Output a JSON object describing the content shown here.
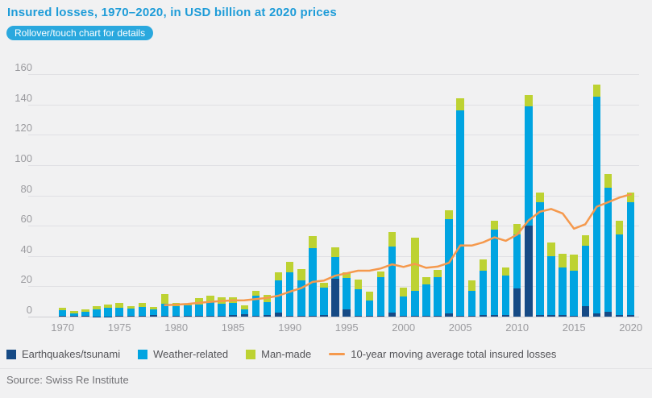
{
  "header": {
    "title": "Insured losses, 1970–2020, in USD billion at 2020 prices",
    "badge": "Rollover/touch chart for details"
  },
  "legend": {
    "items": [
      {
        "label": "Earthquakes/tsunami",
        "color": "#164a85"
      },
      {
        "label": "Weather-related",
        "color": "#00a4e1"
      },
      {
        "label": "Man-made",
        "color": "#bdd232"
      },
      {
        "label": "10-year moving average total insured losses",
        "color": "#f5994d"
      }
    ]
  },
  "footer": {
    "source": "Source: Swiss Re Institute"
  },
  "chart_data": {
    "type": "bar",
    "stacked": true,
    "title": "Insured losses, 1970–2020, in USD billion at 2020 prices",
    "xlabel": "",
    "ylabel": "USD billion at 2020 prices",
    "ylim": [
      0,
      160
    ],
    "grid": true,
    "legend_position": "bottom",
    "categories": [
      1970,
      1971,
      1972,
      1973,
      1974,
      1975,
      1976,
      1977,
      1978,
      1979,
      1980,
      1981,
      1982,
      1983,
      1984,
      1985,
      1986,
      1987,
      1988,
      1989,
      1990,
      1991,
      1992,
      1993,
      1994,
      1995,
      1996,
      1997,
      1998,
      1999,
      2000,
      2001,
      2002,
      2003,
      2004,
      2005,
      2006,
      2007,
      2008,
      2009,
      2010,
      2011,
      2012,
      2013,
      2014,
      2015,
      2016,
      2017,
      2018,
      2019,
      2020
    ],
    "series": [
      {
        "name": "Earthquakes/tsunami",
        "color": "#164a85",
        "values": [
          0.5,
          0.3,
          0.3,
          0.2,
          0.2,
          0.3,
          0.3,
          0.3,
          0.8,
          0.5,
          0.3,
          0.3,
          0.3,
          0.5,
          0.3,
          1.0,
          1.5,
          0.5,
          1.0,
          2.5,
          0.5,
          0.5,
          0.5,
          1.0,
          25.0,
          5.0,
          0.5,
          0.5,
          0.5,
          2.5,
          0.5,
          0.5,
          0.5,
          0.5,
          2.0,
          0.5,
          0.5,
          1.0,
          1.0,
          1.0,
          18.5,
          60.0,
          1.0,
          1.0,
          1.0,
          0.5,
          7.0,
          2.0,
          3.0,
          1.0,
          1.0
        ]
      },
      {
        "name": "Weather-related",
        "color": "#00a4e1",
        "values": [
          3.5,
          2.0,
          3.0,
          4.8,
          5.5,
          5.7,
          5.0,
          6.2,
          4.2,
          8.0,
          6.5,
          7.2,
          7.5,
          9.0,
          8.2,
          8.0,
          3.5,
          13.5,
          8.5,
          21.5,
          28.5,
          23.5,
          44.5,
          18.0,
          14.5,
          20.5,
          17.5,
          10.0,
          25.5,
          43.5,
          13.0,
          16.5,
          21.0,
          25.5,
          62.5,
          135.5,
          16.5,
          29.5,
          56.5,
          26.0,
          35.5,
          79.0,
          74.5,
          39.0,
          31.5,
          30.0,
          40.0,
          143.0,
          82.0,
          53.0,
          74.5
        ]
      },
      {
        "name": "Man-made",
        "color": "#bdd232",
        "values": [
          2.0,
          1.2,
          1.7,
          2.0,
          2.3,
          3.0,
          1.7,
          2.5,
          1.5,
          6.5,
          2.2,
          1.0,
          4.2,
          4.5,
          4.5,
          4.0,
          2.5,
          3.0,
          5.0,
          5.5,
          7.0,
          7.5,
          8.0,
          3.5,
          6.0,
          3.5,
          6.5,
          6.0,
          4.0,
          10.0,
          5.5,
          35.0,
          4.5,
          5.0,
          5.5,
          8.0,
          7.0,
          7.5,
          6.0,
          5.5,
          7.0,
          7.0,
          6.5,
          9.0,
          9.0,
          10.5,
          6.5,
          8.0,
          9.0,
          9.5,
          6.5
        ]
      }
    ],
    "line_series": {
      "name": "10-year moving average total insured losses",
      "color": "#f5994d",
      "values": [
        null,
        null,
        null,
        null,
        null,
        null,
        null,
        null,
        null,
        7.6,
        7.9,
        8.4,
        9.1,
        9.8,
        10.3,
        10.7,
        10.8,
        11.6,
        12.4,
        13.8,
        16.5,
        18.8,
        22.9,
        23.8,
        27.0,
        28.6,
        30.3,
        30.3,
        31.8,
        34.5,
        32.8,
        34.8,
        32.2,
        33.0,
        35.5,
        47.0,
        46.9,
        49.0,
        52.3,
        50.0,
        54.1,
        63.5,
        69.2,
        71.0,
        68.1,
        58.0,
        61.0,
        72.5,
        75.5,
        78.6,
        80.7
      ]
    },
    "y_axis": {
      "ticks": [
        0,
        20,
        40,
        60,
        80,
        100,
        120,
        140,
        160
      ]
    },
    "x_axis": {
      "tick_years": [
        1970,
        1975,
        1980,
        1985,
        1990,
        1995,
        2000,
        2005,
        2010,
        2015,
        2020
      ]
    }
  }
}
